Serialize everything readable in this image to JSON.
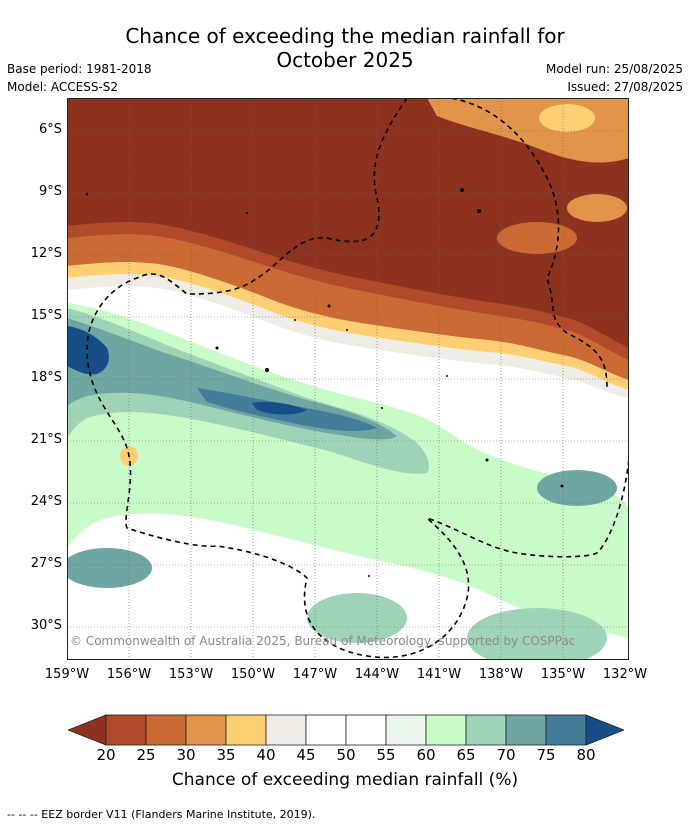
{
  "title": "Chance of exceeding the median rainfall for\nOctober 2025",
  "meta": {
    "base_period": "Base period: 1981-2018",
    "model": "Model: ACCESS-S2",
    "model_run": "Model run: 25/08/2025",
    "issued": "Issued: 27/08/2025"
  },
  "map": {
    "lat_labels": [
      "6°S",
      "9°S",
      "12°S",
      "15°S",
      "18°S",
      "21°S",
      "24°S",
      "27°S",
      "30°S"
    ],
    "lon_labels": [
      "159°W",
      "156°W",
      "153°W",
      "150°W",
      "147°W",
      "144°W",
      "141°W",
      "138°W",
      "135°W",
      "132°W"
    ],
    "copyright": "© Commonwealth of Australia 2025, Bureau of Meteorology, supported by COSPPac"
  },
  "colorbar": {
    "ticks": [
      "20",
      "25",
      "30",
      "35",
      "40",
      "45",
      "50",
      "55",
      "60",
      "65",
      "70",
      "75",
      "80"
    ],
    "colors": [
      "#8e3220",
      "#b04a28",
      "#cb6a34",
      "#e1944a",
      "#fdcf72",
      "#efebe5",
      "#ffffff",
      "#ffffff",
      "#eaf6ea",
      "#c8fbc8",
      "#9fd3b8",
      "#6ea6a4",
      "#437d99",
      "#174e88"
    ],
    "label": "Chance of exceeding median rainfall (%)"
  },
  "footer": "--  --  -- EEZ border V11 (Flanders Marine Institute, 2019)."
}
